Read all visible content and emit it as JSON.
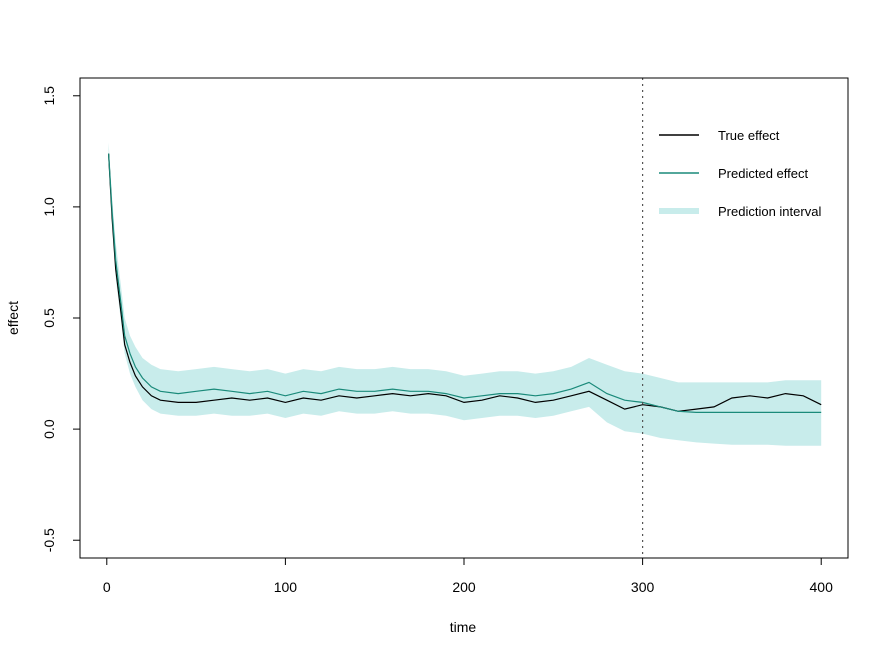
{
  "chart_data": {
    "type": "line",
    "xlabel": "time",
    "ylabel": "effect",
    "xlim": [
      -15,
      415
    ],
    "ylim": [
      -0.58,
      1.58
    ],
    "x_ticks": [
      0,
      100,
      200,
      300,
      400
    ],
    "x_tick_labels": [
      "0",
      "100",
      "200",
      "300",
      "400"
    ],
    "y_ticks": [
      -0.5,
      0.0,
      0.5,
      1.0,
      1.5
    ],
    "y_tick_labels": [
      "-0.5",
      "0.0",
      "0.5",
      "1.0",
      "1.5"
    ],
    "vline": {
      "x": 300,
      "style": "dotted",
      "color": "#555555"
    },
    "legend_position": "top-right",
    "legend": [
      {
        "label": "True effect",
        "color": "#000000",
        "kind": "line"
      },
      {
        "label": "Predicted effect",
        "color": "#1a8a7a",
        "kind": "line"
      },
      {
        "label": "Prediction interval",
        "color": "#c8eceb",
        "kind": "band"
      }
    ],
    "series": [
      {
        "name": "True effect",
        "color": "#000000",
        "x": [
          1,
          3,
          5,
          8,
          10,
          13,
          16,
          20,
          25,
          30,
          40,
          50,
          60,
          70,
          80,
          90,
          100,
          110,
          120,
          130,
          140,
          150,
          160,
          170,
          180,
          190,
          200,
          210,
          220,
          230,
          240,
          250,
          260,
          270,
          280,
          290,
          300,
          310,
          320,
          330,
          340,
          350,
          360,
          370,
          380,
          390,
          400
        ],
        "y": [
          1.24,
          0.95,
          0.72,
          0.52,
          0.38,
          0.3,
          0.24,
          0.19,
          0.15,
          0.13,
          0.12,
          0.12,
          0.13,
          0.14,
          0.13,
          0.14,
          0.12,
          0.14,
          0.13,
          0.15,
          0.14,
          0.15,
          0.16,
          0.15,
          0.16,
          0.15,
          0.12,
          0.13,
          0.15,
          0.14,
          0.12,
          0.13,
          0.15,
          0.17,
          0.13,
          0.09,
          0.11,
          0.1,
          0.08,
          0.09,
          0.1,
          0.14,
          0.15,
          0.14,
          0.16,
          0.15,
          0.11
        ]
      },
      {
        "name": "Predicted effect",
        "color": "#1a8a7a",
        "x": [
          1,
          3,
          5,
          8,
          10,
          13,
          16,
          20,
          25,
          30,
          40,
          50,
          60,
          70,
          80,
          90,
          100,
          110,
          120,
          130,
          140,
          150,
          160,
          170,
          180,
          190,
          200,
          210,
          220,
          230,
          240,
          250,
          260,
          270,
          280,
          290,
          300,
          310,
          320,
          330,
          340,
          350,
          360,
          370,
          380,
          390,
          400
        ],
        "y": [
          1.24,
          0.98,
          0.76,
          0.56,
          0.42,
          0.34,
          0.28,
          0.23,
          0.19,
          0.17,
          0.16,
          0.17,
          0.18,
          0.17,
          0.16,
          0.17,
          0.15,
          0.17,
          0.16,
          0.18,
          0.17,
          0.17,
          0.18,
          0.17,
          0.17,
          0.16,
          0.14,
          0.15,
          0.16,
          0.16,
          0.15,
          0.16,
          0.18,
          0.21,
          0.16,
          0.13,
          0.12,
          0.1,
          0.08,
          0.075,
          0.075,
          0.075,
          0.075,
          0.075,
          0.075,
          0.075,
          0.075
        ]
      }
    ],
    "interval": {
      "name": "Prediction interval",
      "color": "#c8eceb",
      "x": [
        1,
        3,
        5,
        8,
        10,
        13,
        16,
        20,
        25,
        30,
        40,
        50,
        60,
        70,
        80,
        90,
        100,
        110,
        120,
        130,
        140,
        150,
        160,
        170,
        180,
        190,
        200,
        210,
        220,
        230,
        240,
        250,
        260,
        270,
        280,
        290,
        300,
        310,
        320,
        330,
        340,
        350,
        360,
        370,
        380,
        390,
        400
      ],
      "lower": [
        1.2,
        0.92,
        0.68,
        0.48,
        0.34,
        0.25,
        0.19,
        0.13,
        0.09,
        0.07,
        0.06,
        0.06,
        0.07,
        0.06,
        0.06,
        0.07,
        0.05,
        0.07,
        0.06,
        0.08,
        0.07,
        0.07,
        0.08,
        0.07,
        0.07,
        0.06,
        0.04,
        0.05,
        0.06,
        0.06,
        0.05,
        0.06,
        0.08,
        0.1,
        0.03,
        -0.01,
        -0.02,
        -0.04,
        -0.05,
        -0.06,
        -0.065,
        -0.07,
        -0.07,
        -0.07,
        -0.075,
        -0.075,
        -0.075
      ],
      "upper": [
        1.29,
        1.04,
        0.84,
        0.64,
        0.5,
        0.42,
        0.37,
        0.32,
        0.29,
        0.27,
        0.26,
        0.27,
        0.28,
        0.27,
        0.26,
        0.27,
        0.25,
        0.27,
        0.26,
        0.28,
        0.27,
        0.27,
        0.28,
        0.27,
        0.27,
        0.26,
        0.24,
        0.25,
        0.26,
        0.26,
        0.25,
        0.26,
        0.28,
        0.32,
        0.29,
        0.26,
        0.25,
        0.23,
        0.21,
        0.21,
        0.21,
        0.21,
        0.21,
        0.21,
        0.22,
        0.22,
        0.22
      ]
    }
  }
}
